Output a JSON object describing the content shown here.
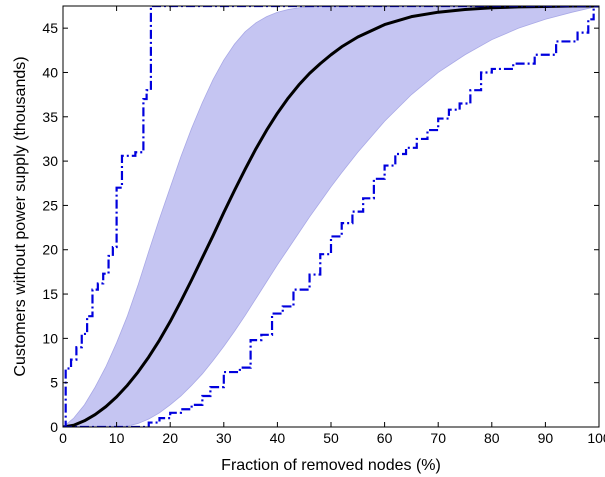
{
  "chart_data": {
    "type": "line",
    "xlabel": "Fraction of removed nodes (%)",
    "ylabel": "Customers without power supply (thousands)",
    "xlim": [
      0,
      100
    ],
    "ylim": [
      0,
      47.5
    ],
    "x_ticks": [
      0,
      10,
      20,
      30,
      40,
      50,
      60,
      70,
      80,
      90,
      100
    ],
    "y_ticks": [
      0,
      5,
      10,
      15,
      20,
      25,
      30,
      35,
      40,
      45
    ],
    "grid": false,
    "legend": "none",
    "colors": {
      "band_fill": "#c5c5f2",
      "band_edge": "#a9a9e6",
      "mean_line": "#000000",
      "extreme_lines": "#0000dd",
      "axes": "#000000"
    },
    "series": [
      {
        "style": "band",
        "x": [
          0,
          2,
          4,
          6,
          8,
          10,
          12,
          14,
          16,
          18,
          20,
          22,
          24,
          26,
          28,
          30,
          32,
          34,
          36,
          38,
          40,
          42,
          44,
          46,
          48,
          50,
          52,
          55,
          60,
          65,
          70,
          75,
          80,
          85,
          90,
          95,
          100
        ],
        "upper": [
          0,
          1.0,
          2.5,
          4.5,
          6.8,
          9.5,
          12.5,
          16.0,
          19.8,
          23.5,
          27.0,
          30.5,
          33.7,
          36.6,
          39.2,
          41.4,
          43.2,
          44.6,
          45.6,
          46.3,
          46.8,
          47.1,
          47.3,
          47.4,
          47.45,
          47.5,
          47.5,
          47.5,
          47.5,
          47.5,
          47.5,
          47.5,
          47.5,
          47.5,
          47.5,
          47.5,
          47.5
        ],
        "lower": [
          0,
          0,
          0,
          0,
          0,
          0,
          0.1,
          0.4,
          0.9,
          1.6,
          2.5,
          3.5,
          4.7,
          6.0,
          7.5,
          9.1,
          10.8,
          12.6,
          14.5,
          16.4,
          18.3,
          20.1,
          21.9,
          23.7,
          25.4,
          27.1,
          28.7,
          31.0,
          34.5,
          37.5,
          40.0,
          42.0,
          43.7,
          45.0,
          46.0,
          46.8,
          47.5
        ]
      },
      {
        "style": "solid",
        "x": [
          0,
          2,
          4,
          6,
          8,
          10,
          12,
          14,
          16,
          18,
          20,
          22,
          24,
          26,
          28,
          30,
          32,
          34,
          36,
          38,
          40,
          42,
          44,
          46,
          48,
          50,
          52,
          55,
          60,
          65,
          70,
          75,
          80,
          85,
          90,
          95,
          100
        ],
        "y": [
          0,
          0.2,
          0.7,
          1.4,
          2.3,
          3.4,
          4.7,
          6.2,
          7.9,
          9.8,
          11.9,
          14.2,
          16.6,
          19.1,
          21.6,
          24.2,
          26.7,
          29.1,
          31.4,
          33.5,
          35.4,
          37.1,
          38.6,
          39.9,
          41.0,
          42.0,
          42.9,
          44.0,
          45.4,
          46.3,
          46.8,
          47.1,
          47.3,
          47.4,
          47.45,
          47.5,
          47.5
        ]
      },
      {
        "style": "dash-dot",
        "x": [
          0,
          0.5,
          0.5,
          1.5,
          1.5,
          2.5,
          2.5,
          3.5,
          3.5,
          4.5,
          4.5,
          5.5,
          5.5,
          6.5,
          6.5,
          7.5,
          7.5,
          8.5,
          8.5,
          9.3,
          9.3,
          10.0,
          10.0,
          11.0,
          11.0,
          13.5,
          13.5,
          15.0,
          15.0,
          15.6,
          15.6,
          16.4,
          16.4,
          100
        ],
        "y": [
          0,
          0,
          6.6,
          6.6,
          7.6,
          7.6,
          9.0,
          9.0,
          10.5,
          10.5,
          12.5,
          12.5,
          15.5,
          15.5,
          16.2,
          16.2,
          17.3,
          17.3,
          19.3,
          19.3,
          20.3,
          20.3,
          27.0,
          27.0,
          30.6,
          30.6,
          31.0,
          31.0,
          37.0,
          37.0,
          38.0,
          38.0,
          47.5,
          47.5
        ]
      },
      {
        "style": "dash-dot",
        "x": [
          0,
          16,
          16,
          18,
          18,
          20,
          20,
          22,
          22,
          24,
          24,
          26,
          26,
          27.5,
          27.5,
          30,
          30,
          33,
          33,
          35,
          35,
          37,
          37,
          39,
          39,
          41,
          41,
          43,
          43,
          46,
          46,
          48,
          48,
          50,
          50,
          52,
          52,
          54,
          54,
          56,
          56,
          58,
          58,
          60,
          60,
          62,
          62,
          64,
          64,
          66,
          66,
          68,
          68,
          70,
          70,
          72,
          72,
          74,
          74,
          76,
          76,
          78,
          78,
          80,
          80,
          84,
          84,
          88,
          88,
          92,
          92,
          96,
          96,
          98,
          98,
          99,
          99,
          100
        ],
        "y": [
          0,
          0,
          0.5,
          0.5,
          1.0,
          1.0,
          1.6,
          1.6,
          2.0,
          2.0,
          2.5,
          2.5,
          3.5,
          3.5,
          4.5,
          4.5,
          6.2,
          6.2,
          6.7,
          6.7,
          9.8,
          9.8,
          10.4,
          10.4,
          12.8,
          12.8,
          13.6,
          13.6,
          15.5,
          15.5,
          17.2,
          17.2,
          19.5,
          19.5,
          21.5,
          21.5,
          23.0,
          23.0,
          24.3,
          24.3,
          25.8,
          25.8,
          28.0,
          28.0,
          29.5,
          29.5,
          30.8,
          30.8,
          31.5,
          31.5,
          32.5,
          32.5,
          33.5,
          33.5,
          34.8,
          34.8,
          35.8,
          35.8,
          36.5,
          36.5,
          38.0,
          38.0,
          40.0,
          40.0,
          40.4,
          40.4,
          41.0,
          41.0,
          42.0,
          42.0,
          43.5,
          43.5,
          44.5,
          44.5,
          46.0,
          46.0,
          47.5,
          47.5
        ]
      }
    ]
  }
}
